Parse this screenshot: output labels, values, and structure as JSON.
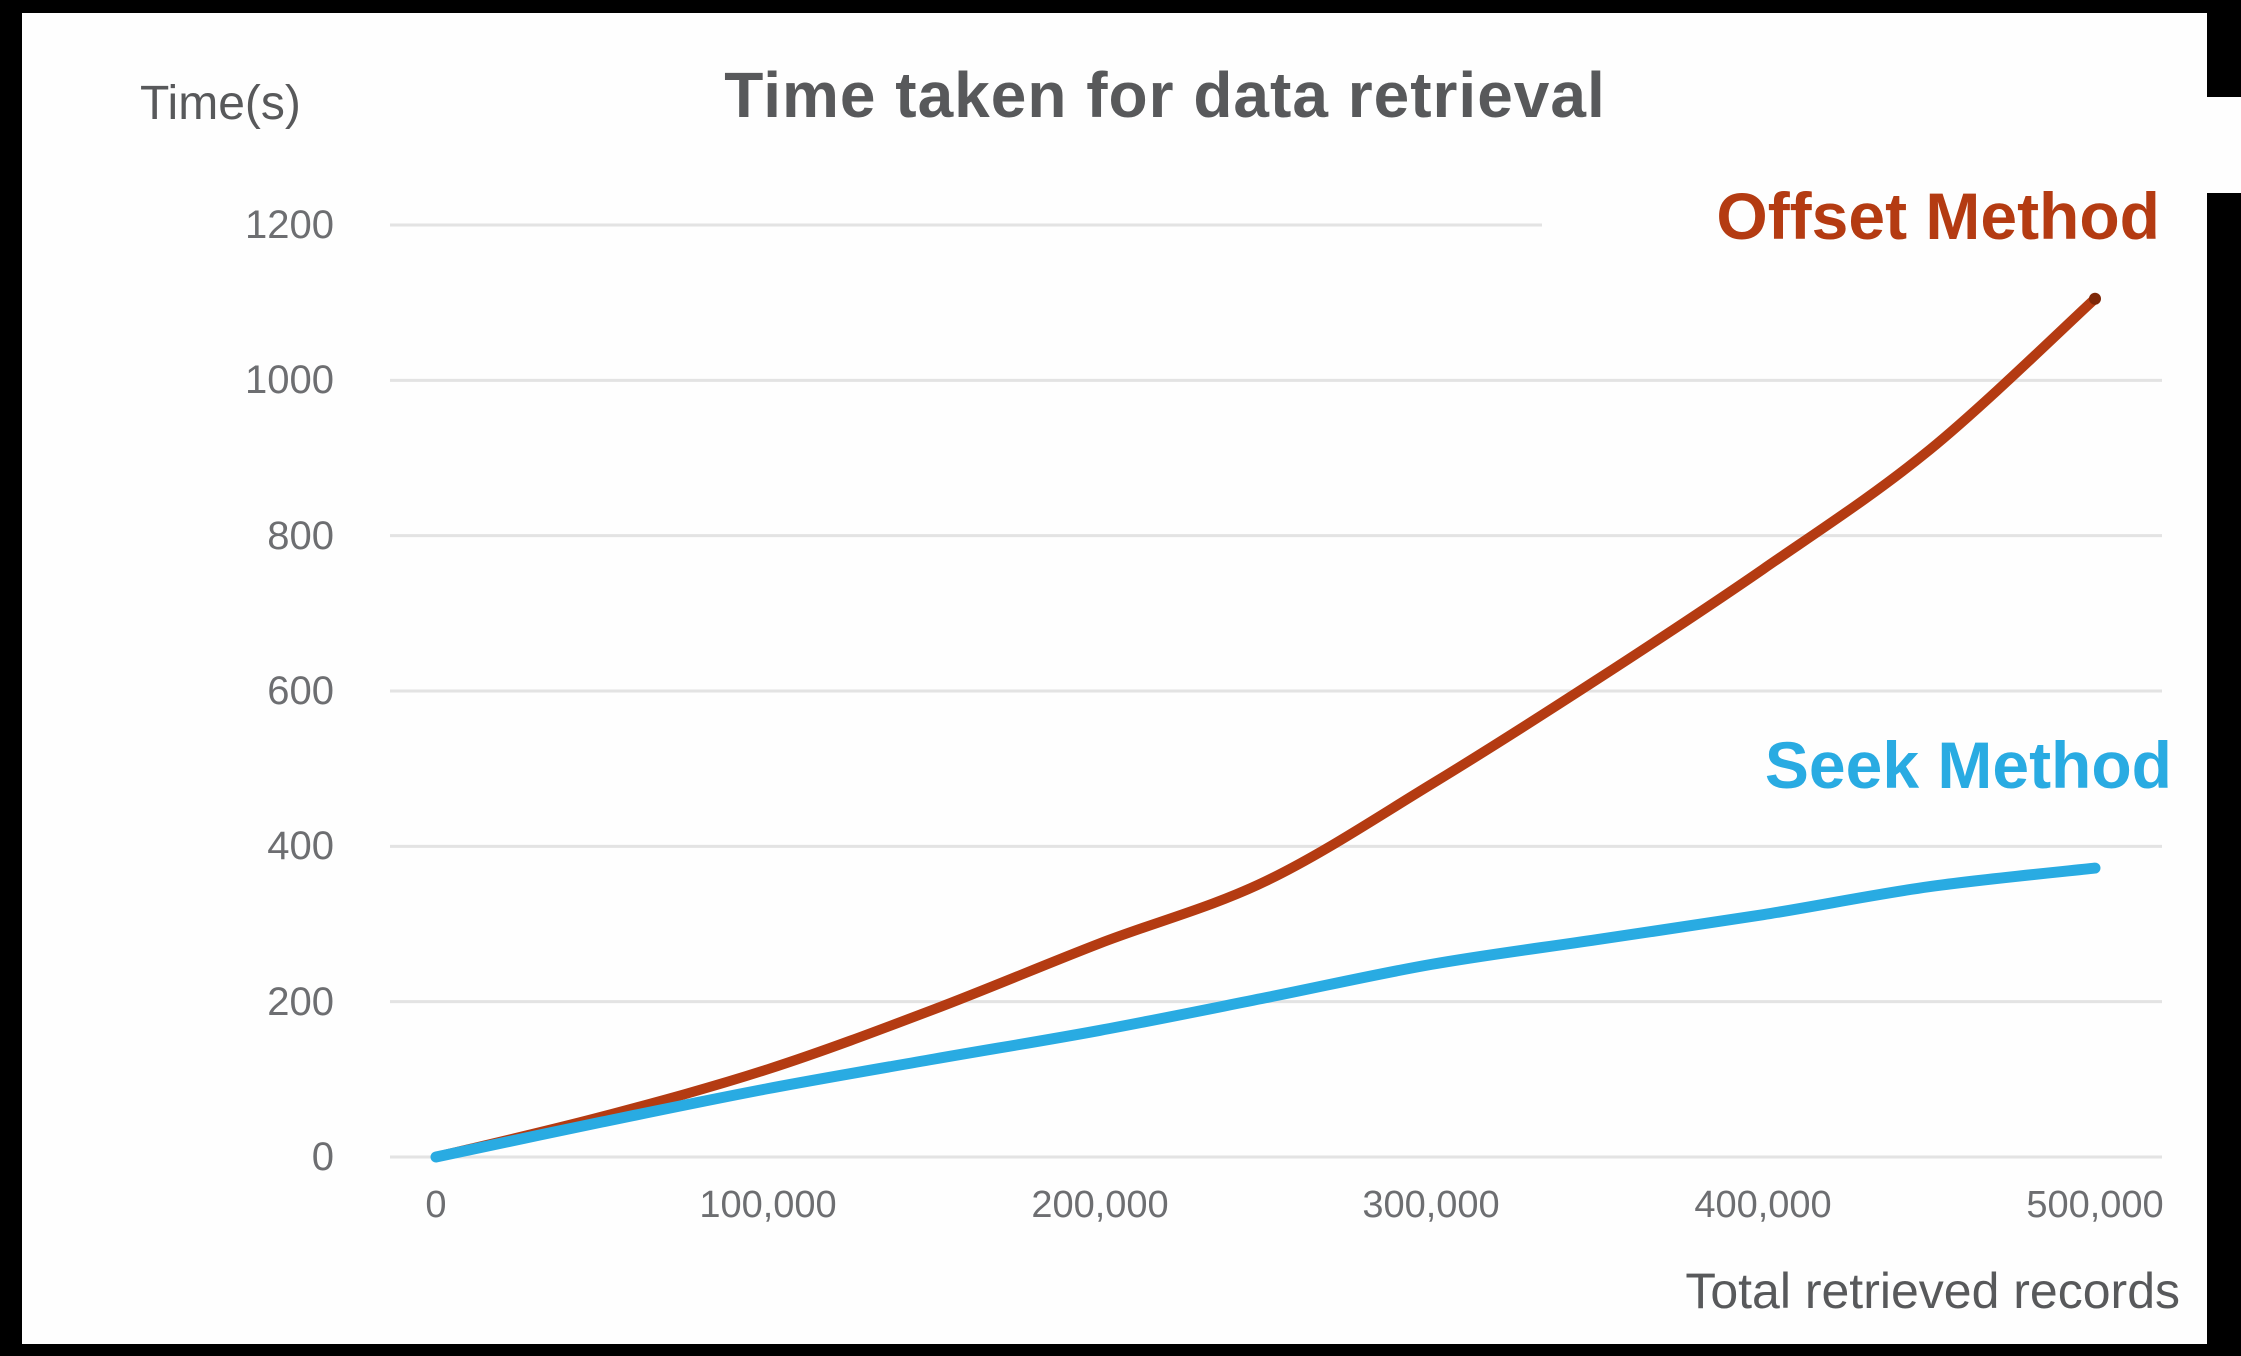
{
  "chart_data": {
    "type": "line",
    "title": "Time taken for data retrieval",
    "ylabel": "Time(s)",
    "xlabel": "Total retrieved records",
    "xlim": [
      0,
      500000
    ],
    "ylim": [
      0,
      1200
    ],
    "grid": "horizontal",
    "legend_position": "inline-right-of-lines",
    "x": [
      0,
      50000,
      100000,
      150000,
      200000,
      250000,
      300000,
      350000,
      400000,
      450000,
      500000
    ],
    "x_ticklabels": [
      "0",
      "100,000",
      "200,000",
      "300,000",
      "400,000",
      "500,000"
    ],
    "y_ticklabels": [
      "0",
      "200",
      "400",
      "600",
      "800",
      "1000",
      "1200"
    ],
    "series": [
      {
        "name": "Offset Method",
        "color": "#b43b12",
        "values": [
          0,
          52,
          113,
          190,
          275,
          355,
          480,
          615,
          757,
          910,
          1105
        ]
      },
      {
        "name": "Seek Method",
        "color": "#29abe2",
        "values": [
          0,
          45,
          88,
          126,
          163,
          205,
          248,
          280,
          312,
          348,
          372
        ]
      }
    ],
    "colors": {
      "title_text": "#58595b",
      "tick_text": "#6d6e71",
      "gridline": "#e3e3e3",
      "background": "#ffffff",
      "frame": "#000000"
    }
  }
}
